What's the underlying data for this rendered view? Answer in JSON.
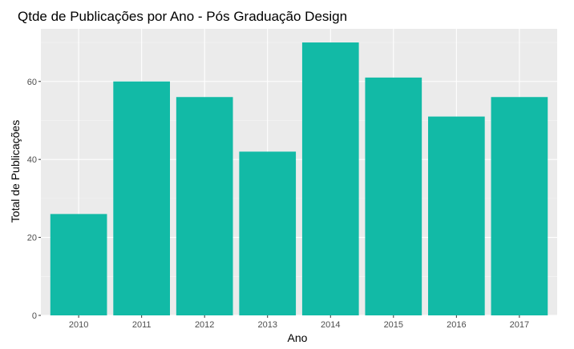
{
  "chart_data": {
    "type": "bar",
    "title": "Qtde de Publicações por Ano - Pós Graduação Design",
    "xlabel": "Ano",
    "ylabel": "Total de Publicações",
    "categories": [
      "2010",
      "2011",
      "2012",
      "2013",
      "2014",
      "2015",
      "2016",
      "2017"
    ],
    "values": [
      26,
      60,
      56,
      42,
      70,
      61,
      51,
      56
    ],
    "ylim": [
      0,
      73.5
    ],
    "yticks": [
      0,
      20,
      40,
      60
    ],
    "grid": true,
    "legend": "none",
    "colors": {
      "bar": "#12BAA6",
      "panel": "#EBEBEB",
      "grid_major": "#FFFFFF",
      "grid_minor": "#F5F5F5",
      "tick": "#333333"
    }
  }
}
